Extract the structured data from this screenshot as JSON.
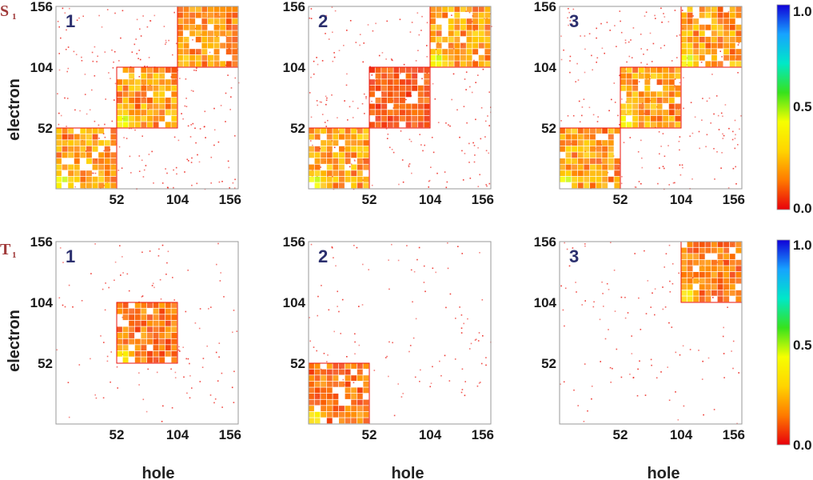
{
  "chart_data": {
    "type": "heatmap",
    "description_source": "transition density matrices (hole vs electron)",
    "axis_range": [
      0,
      156
    ],
    "ticks": [
      52,
      104,
      156
    ],
    "xlabel": "hole",
    "ylabel": "electron",
    "rows": [
      {
        "tag": "S",
        "sub": "1"
      },
      {
        "tag": "T",
        "sub": "1"
      }
    ],
    "colorbar": {
      "min": 0.0,
      "max": 1.0,
      "ticks": [
        "0.0",
        "0.5",
        "1.0"
      ],
      "colors": [
        "#e8000b",
        "#ff7a00",
        "#ffd400",
        "#f6ff00",
        "#37e21c",
        "#00e8c8",
        "#17a3ff",
        "#1000d8"
      ]
    },
    "panels": [
      {
        "row": 0,
        "label": "1",
        "blocks": [
          {
            "x": [
              0,
              52
            ],
            "y": [
              0,
              52
            ],
            "intensity": 0.25,
            "peak": [
              6,
              6
            ],
            "peak_value": 0.5
          },
          {
            "x": [
              52,
              104
            ],
            "y": [
              52,
              104
            ],
            "intensity": 0.25,
            "peak": [
              58,
              58
            ],
            "peak_value": 0.5
          },
          {
            "x": [
              104,
              156
            ],
            "y": [
              104,
              156
            ],
            "intensity": 0.22,
            "peak": [
              110,
              110
            ],
            "peak_value": 0.3
          }
        ]
      },
      {
        "row": 0,
        "label": "2",
        "blocks": [
          {
            "x": [
              0,
              52
            ],
            "y": [
              0,
              52
            ],
            "intensity": 0.25,
            "peak": [
              6,
              6
            ],
            "peak_value": 0.5
          },
          {
            "x": [
              52,
              104
            ],
            "y": [
              52,
              104
            ],
            "intensity": 0.12,
            "peak": null,
            "peak_value": 0
          },
          {
            "x": [
              104,
              156
            ],
            "y": [
              104,
              156
            ],
            "intensity": 0.25,
            "peak": [
              110,
              110
            ],
            "peak_value": 0.5
          }
        ]
      },
      {
        "row": 0,
        "label": "3",
        "blocks": [
          {
            "x": [
              0,
              52
            ],
            "y": [
              0,
              52
            ],
            "intensity": 0.25,
            "peak": [
              6,
              6
            ],
            "peak_value": 0.5
          },
          {
            "x": [
              52,
              104
            ],
            "y": [
              52,
              104
            ],
            "intensity": 0.25,
            "peak": [
              58,
              58
            ],
            "peak_value": 0.5
          },
          {
            "x": [
              104,
              156
            ],
            "y": [
              104,
              156
            ],
            "intensity": 0.25,
            "peak": [
              110,
              110
            ],
            "peak_value": 0.5
          }
        ]
      },
      {
        "row": 1,
        "label": "1",
        "blocks": [
          {
            "x": [
              52,
              104
            ],
            "y": [
              52,
              104
            ],
            "intensity": 0.18,
            "peak": [
              58,
              58
            ],
            "peak_value": 0.4
          }
        ]
      },
      {
        "row": 1,
        "label": "2",
        "blocks": [
          {
            "x": [
              0,
              52
            ],
            "y": [
              0,
              52
            ],
            "intensity": 0.18,
            "peak": [
              6,
              6
            ],
            "peak_value": 0.4
          }
        ]
      },
      {
        "row": 1,
        "label": "3",
        "blocks": [
          {
            "x": [
              104,
              156
            ],
            "y": [
              104,
              156
            ],
            "intensity": 0.18,
            "peak": [
              110,
              110
            ],
            "peak_value": 0.4
          }
        ]
      }
    ]
  }
}
